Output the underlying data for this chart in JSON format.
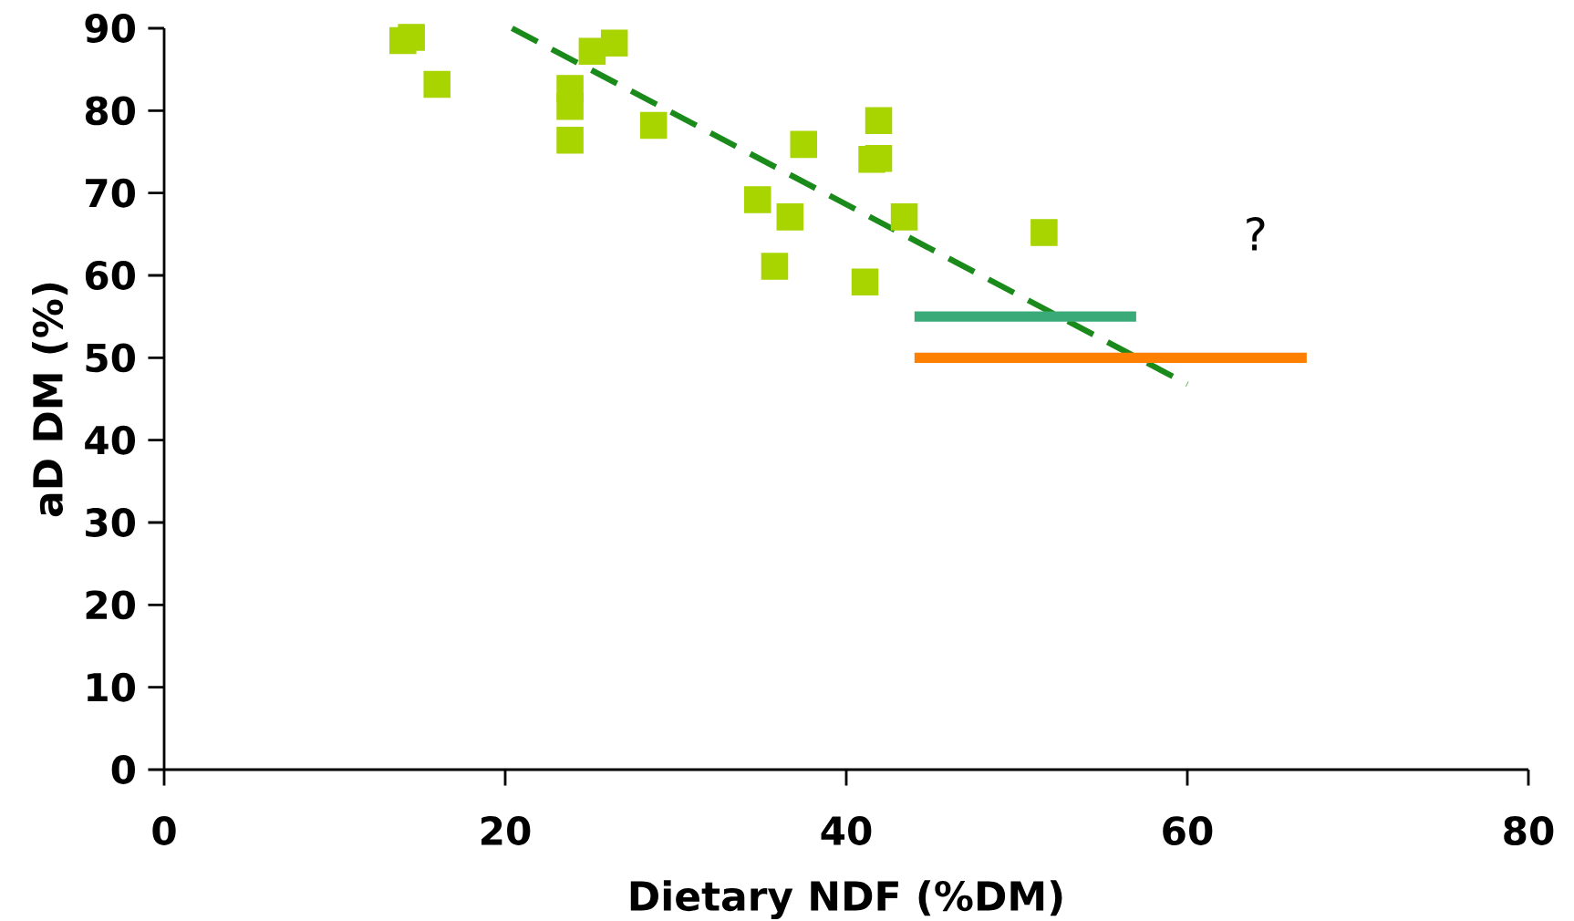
{
  "chart_data": {
    "type": "scatter",
    "xlabel": "Dietary NDF (%DM)",
    "ylabel": "aD DM (%)",
    "xlim": [
      0,
      80
    ],
    "ylim": [
      0,
      90
    ],
    "xticks": [
      0,
      20,
      40,
      60,
      80
    ],
    "yticks": [
      0,
      10,
      20,
      30,
      40,
      50,
      60,
      70,
      80,
      90
    ],
    "grid": false,
    "series": [
      {
        "marker": "square",
        "color": "#a8d400",
        "x": [
          14.0,
          14.5,
          16.0,
          23.8,
          23.8,
          23.8,
          25.1,
          26.4,
          28.7,
          34.8,
          35.8,
          36.7,
          37.5,
          41.1,
          41.5,
          41.9,
          41.9,
          43.4,
          51.6
        ],
        "values": [
          88.5,
          88.9,
          83.2,
          82.7,
          80.5,
          76.4,
          87.2,
          88.2,
          78.2,
          69.2,
          61.1,
          67.1,
          75.9,
          59.2,
          74.1,
          78.8,
          74.2,
          67.1,
          65.2
        ]
      },
      {
        "type": "line",
        "line_style": "dashed",
        "marker": "none",
        "color": "#1a8a1a",
        "x": [
          20.4,
          60.0
        ],
        "values": [
          90,
          46.8
        ]
      },
      {
        "type": "line",
        "line_style": "solid",
        "marker": "none",
        "color": "#3aaa78",
        "x": [
          44,
          57
        ],
        "values": [
          55,
          55
        ]
      },
      {
        "type": "line",
        "line_style": "solid",
        "marker": "none",
        "color": "#ff8000",
        "x": [
          44,
          67
        ],
        "values": [
          50,
          50
        ]
      }
    ],
    "annotations": [
      "?"
    ]
  }
}
